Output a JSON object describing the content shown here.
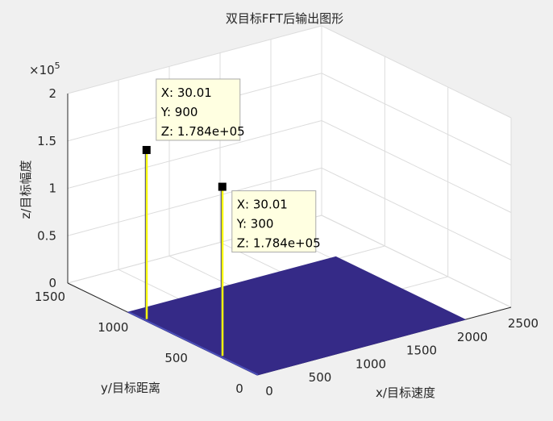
{
  "chart_data": {
    "type": "surface3d",
    "title": "双目标FFT后输出图形",
    "xlabel": "x/目标速度",
    "ylabel": "y/目标距离",
    "zlabel": "z/目标幅度",
    "xlim": [
      0,
      2500
    ],
    "ylim": [
      0,
      1500
    ],
    "zlim": [
      0,
      200000
    ],
    "x_ticks": [
      "0",
      "500",
      "1000",
      "1500",
      "2000",
      "2500"
    ],
    "y_ticks": [
      "0",
      "500",
      "1000",
      "1500"
    ],
    "z_ticks": [
      "0",
      "0.5",
      "1",
      "1.5",
      "2"
    ],
    "z_exponent_prefix": "×10",
    "z_exponent_power": "5",
    "grid": true,
    "surface_extent": {
      "x": [
        0,
        2048
      ],
      "y": [
        0,
        1024
      ]
    },
    "surface_color": "#352a87",
    "peak_color": "#f9fb0e",
    "peaks": [
      {
        "x": 30.01,
        "y": 900,
        "z": 178400
      },
      {
        "x": 30.01,
        "y": 300,
        "z": 178400
      }
    ],
    "datatips": [
      {
        "x_text": "X: 30.01",
        "y_text": "Y: 900",
        "z_text": "Z: 1.784e+05"
      },
      {
        "x_text": "X: 30.01",
        "y_text": "Y: 300",
        "z_text": "Z: 1.784e+05"
      }
    ]
  }
}
